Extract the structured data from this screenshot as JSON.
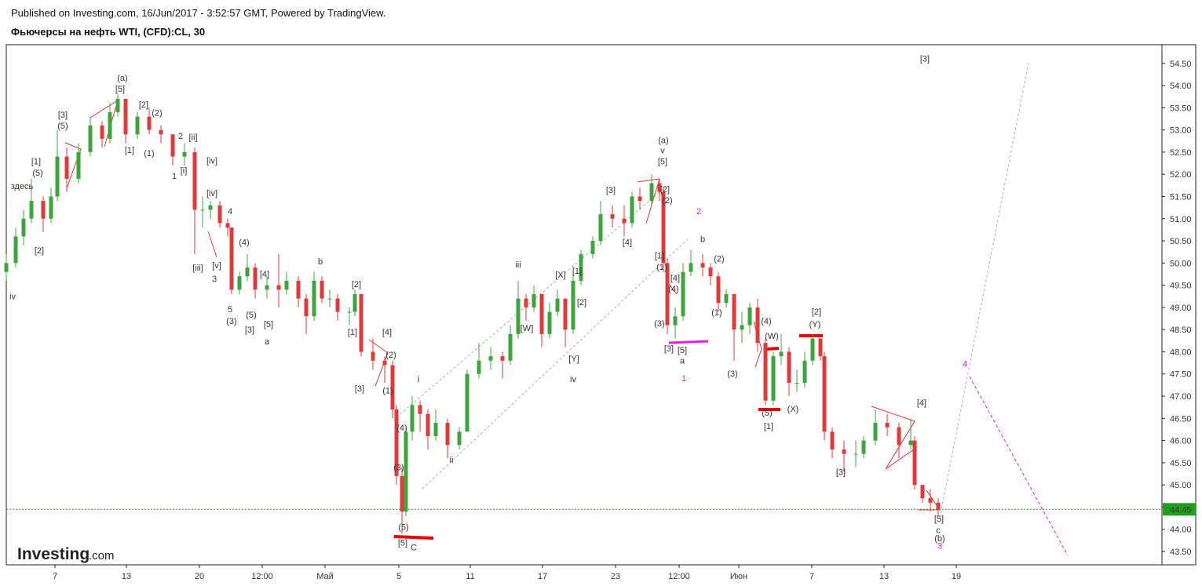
{
  "header": {
    "published": "Published on Investing.com, 16/Jun/2017 - 3:52:57 GMT, Powered by TradingView.",
    "title": "Фьючерсы на нефть WTI, (CFD):CL, 30"
  },
  "logo": {
    "brand": "Investing",
    "suffix": ".com"
  },
  "chart_data": {
    "type": "candlestick",
    "xlim": [
      0,
      1472
    ],
    "xticks": [
      {
        "value": 62,
        "label": "7"
      },
      {
        "value": 153,
        "label": "13"
      },
      {
        "value": 246,
        "label": "20"
      },
      {
        "value": 326,
        "label": "12:00"
      },
      {
        "value": 406,
        "label": "Май"
      },
      {
        "value": 500,
        "label": "5"
      },
      {
        "value": 591,
        "label": "11"
      },
      {
        "value": 683,
        "label": "17"
      },
      {
        "value": 776,
        "label": "23"
      },
      {
        "value": 857,
        "label": "12:00"
      },
      {
        "value": 933,
        "label": "Июн"
      },
      {
        "value": 1026,
        "label": "7"
      },
      {
        "value": 1118,
        "label": "13"
      },
      {
        "value": 1210,
        "label": "19"
      }
    ],
    "ylim": [
      43.2,
      54.92
    ],
    "yticks": [
      {
        "value": 43.5,
        "label": "43.50"
      },
      {
        "value": 44,
        "label": "44.00"
      },
      {
        "value": 44.5,
        "label": "44.50"
      },
      {
        "value": 45,
        "label": "45.00"
      },
      {
        "value": 45.5,
        "label": "45.50"
      },
      {
        "value": 46,
        "label": "46.00"
      },
      {
        "value": 46.5,
        "label": "46.50"
      },
      {
        "value": 47,
        "label": "47.00"
      },
      {
        "value": 47.5,
        "label": "47.50"
      },
      {
        "value": 48,
        "label": "48.00"
      },
      {
        "value": 48.5,
        "label": "48.50"
      },
      {
        "value": 49,
        "label": "49.00"
      },
      {
        "value": 49.5,
        "label": "49.50"
      },
      {
        "value": 50,
        "label": "50.00"
      },
      {
        "value": 50.5,
        "label": "50.50"
      },
      {
        "value": 51,
        "label": "51.00"
      },
      {
        "value": 51.5,
        "label": "51.50"
      },
      {
        "value": 52,
        "label": "52.00"
      },
      {
        "value": 52.5,
        "label": "52.50"
      },
      {
        "value": 53,
        "label": "53.00"
      },
      {
        "value": 53.5,
        "label": "53.50"
      },
      {
        "value": 54,
        "label": "54.00"
      },
      {
        "value": 54.5,
        "label": "54.50"
      }
    ],
    "up_color": "#3da53d",
    "down_color": "#e23a3a",
    "last_price": 44.45,
    "last_price_color": "#1ea01e",
    "x": [
      0,
      12,
      22,
      32,
      47,
      57,
      65,
      77,
      92,
      107,
      122,
      132,
      142,
      152,
      167,
      182,
      197,
      212,
      227,
      240,
      250,
      260,
      272,
      282,
      287,
      297,
      307,
      317,
      332,
      347,
      357,
      372,
      382,
      392,
      402,
      412,
      422,
      437,
      444,
      452,
      467,
      482,
      492,
      497,
      504,
      509,
      517,
      527,
      537,
      547,
      562,
      577,
      587,
      602,
      617,
      632,
      642,
      652,
      662,
      672,
      682,
      692,
      702,
      712,
      722,
      732,
      747,
      757,
      772,
      787,
      797,
      807,
      822,
      832,
      837,
      842,
      852,
      862,
      872,
      887,
      897,
      907,
      917,
      927,
      937,
      947,
      957,
      967,
      977,
      987,
      997,
      1007,
      1017,
      1027,
      1037,
      1042,
      1052,
      1067,
      1082,
      1092,
      1107,
      1122,
      1137,
      1152,
      1157,
      1167,
      1177,
      1187
    ],
    "open": [
      49.8,
      50.0,
      50.6,
      51.0,
      51.4,
      51.0,
      51.5,
      52.4,
      51.9,
      52.5,
      53.1,
      52.8,
      53.4,
      53.7,
      52.9,
      53.3,
      53.0,
      52.9,
      52.4,
      52.5,
      51.2,
      51.2,
      51.3,
      50.9,
      50.8,
      49.4,
      49.7,
      49.9,
      49.4,
      49.5,
      49.4,
      49.6,
      49.2,
      48.8,
      49.6,
      49.2,
      49.2,
      48.9,
      48.9,
      49.3,
      48.0,
      47.8,
      47.7,
      46.7,
      45.2,
      44.4,
      46.2,
      46.8,
      46.6,
      46.1,
      46.4,
      45.9,
      46.2,
      47.5,
      47.8,
      47.9,
      47.8,
      48.4,
      49.2,
      49.0,
      49.3,
      48.4,
      48.9,
      49.2,
      48.5,
      49.6,
      50.2,
      50.5,
      51.1,
      51.0,
      50.9,
      51.5,
      51.4,
      51.8,
      51.6,
      50.0,
      48.6,
      48.8,
      49.8,
      50.0,
      49.9,
      49.7,
      49.1,
      49.3,
      48.5,
      48.6,
      49.0,
      48.2,
      46.9,
      47.9,
      48.0,
      47.3,
      47.3,
      47.8,
      48.3,
      47.9,
      46.2,
      45.8,
      45.7,
      45.7,
      46.0,
      46.4,
      46.3,
      45.9,
      46.0,
      45.0,
      44.7,
      44.6
    ],
    "high": [
      50.2,
      50.8,
      51.2,
      51.9,
      51.5,
      51.7,
      53.0,
      52.6,
      52.7,
      53.3,
      53.2,
      53.6,
      53.8,
      53.7,
      53.4,
      53.5,
      53.1,
      52.9,
      52.7,
      52.6,
      51.5,
      51.4,
      51.4,
      51.0,
      50.8,
      49.8,
      50.2,
      50.0,
      49.7,
      50.2,
      49.8,
      49.7,
      49.3,
      49.8,
      49.7,
      49.4,
      49.3,
      49.0,
      49.4,
      49.3,
      48.3,
      47.9,
      47.8,
      46.8,
      45.4,
      46.3,
      47.0,
      46.9,
      46.7,
      46.7,
      46.5,
      46.3,
      47.6,
      48.2,
      48.1,
      48.0,
      48.6,
      49.6,
      49.3,
      49.5,
      49.3,
      49.1,
      49.4,
      49.2,
      49.8,
      50.3,
      50.6,
      51.4,
      51.3,
      51.3,
      51.6,
      51.7,
      52.0,
      51.9,
      51.7,
      50.1,
      49.0,
      50.0,
      50.3,
      50.2,
      50.0,
      49.8,
      49.4,
      49.3,
      48.9,
      49.1,
      49.2,
      48.3,
      48.0,
      48.4,
      48.1,
      47.6,
      48.0,
      48.4,
      48.3,
      48.0,
      46.3,
      46.0,
      46.0,
      46.1,
      46.7,
      46.6,
      46.4,
      46.5,
      46.1,
      45.0,
      44.9,
      44.7
    ],
    "low": [
      49.6,
      49.9,
      50.4,
      50.9,
      50.7,
      50.9,
      51.4,
      51.6,
      51.8,
      52.4,
      52.6,
      52.7,
      53.3,
      52.7,
      52.8,
      52.9,
      52.7,
      52.2,
      52.2,
      50.2,
      50.8,
      51.0,
      50.8,
      50.6,
      49.3,
      49.3,
      49.6,
      49.2,
      49.2,
      49.0,
      49.3,
      49.0,
      48.4,
      48.7,
      49.1,
      49.0,
      48.7,
      48.6,
      48.8,
      47.9,
      47.6,
      47.3,
      46.5,
      45.0,
      43.9,
      44.3,
      46.0,
      46.2,
      45.8,
      46.0,
      45.6,
      45.8,
      46.2,
      47.4,
      47.6,
      47.4,
      47.7,
      48.3,
      48.7,
      48.9,
      48.1,
      48.3,
      48.8,
      48.1,
      48.4,
      49.5,
      50.1,
      50.4,
      50.8,
      50.6,
      50.8,
      51.2,
      51.3,
      51.4,
      49.8,
      48.4,
      48.3,
      48.7,
      49.7,
      49.7,
      49.5,
      48.9,
      49.0,
      47.8,
      48.2,
      48.4,
      48.0,
      46.8,
      46.8,
      47.7,
      47.0,
      47.1,
      47.2,
      47.7,
      47.8,
      46.0,
      45.6,
      45.3,
      45.4,
      45.6,
      45.9,
      46.1,
      45.6,
      45.8,
      44.9,
      44.6,
      44.4,
      44.3
    ],
    "close": [
      50.0,
      50.6,
      51.0,
      51.4,
      51.0,
      51.5,
      52.4,
      51.9,
      52.5,
      53.1,
      52.8,
      53.4,
      53.7,
      52.9,
      53.3,
      53.0,
      52.9,
      52.4,
      52.5,
      51.2,
      51.2,
      51.3,
      50.9,
      50.8,
      49.4,
      49.7,
      49.9,
      49.4,
      49.5,
      49.4,
      49.6,
      49.2,
      48.8,
      49.6,
      49.2,
      49.2,
      48.9,
      48.9,
      49.3,
      48.0,
      47.8,
      47.7,
      46.7,
      45.2,
      44.4,
      46.2,
      46.8,
      46.6,
      46.1,
      46.4,
      45.9,
      46.2,
      47.5,
      47.8,
      47.9,
      47.8,
      48.4,
      49.2,
      49.0,
      49.3,
      48.4,
      48.9,
      49.2,
      48.5,
      49.6,
      50.2,
      50.5,
      51.1,
      51.0,
      50.9,
      51.5,
      51.4,
      51.8,
      51.6,
      50.0,
      48.6,
      48.8,
      49.8,
      50.0,
      49.9,
      49.7,
      49.1,
      49.3,
      48.5,
      48.6,
      49.0,
      48.2,
      46.9,
      47.9,
      48.0,
      47.3,
      47.3,
      47.8,
      48.3,
      47.9,
      46.2,
      45.8,
      45.7,
      45.7,
      46.0,
      46.4,
      46.3,
      45.9,
      46.0,
      45.0,
      44.7,
      44.6,
      44.45
    ],
    "annotation_color": "#333333",
    "annotations": [
      {
        "text": "(a)",
        "x": 148,
        "y": 54.11
      },
      {
        "text": "[5]",
        "x": 145,
        "y": 53.86
      },
      {
        "text": "[3]",
        "x": 72,
        "y": 53.28
      },
      {
        "text": "(5)",
        "x": 72,
        "y": 53.03
      },
      {
        "text": "[1]",
        "x": 38,
        "y": 52.22
      },
      {
        "text": "(5)",
        "x": 40,
        "y": 51.97
      },
      {
        "text": "здесь",
        "x": 20,
        "y": 51.67
      },
      {
        "text": "[2]",
        "x": 42,
        "y": 50.22
      },
      {
        "text": "iv",
        "x": 8,
        "y": 49.18
      },
      {
        "text": "[1]",
        "x": 157,
        "y": 52.48
      },
      {
        "text": "[2]",
        "x": 175,
        "y": 53.51
      },
      {
        "text": "(2)",
        "x": 192,
        "y": 53.32
      },
      {
        "text": "(1)",
        "x": 182,
        "y": 52.41
      },
      {
        "text": "2",
        "x": 222,
        "y": 52.8
      },
      {
        "text": "[ii]",
        "x": 238,
        "y": 52.77
      },
      {
        "text": "1",
        "x": 214,
        "y": 51.9
      },
      {
        "text": "[i]",
        "x": 226,
        "y": 52.02
      },
      {
        "text": "[iv]",
        "x": 262,
        "y": 52.24
      },
      {
        "text": "[iv]",
        "x": 262,
        "y": 51.51
      },
      {
        "text": "4",
        "x": 285,
        "y": 51.1
      },
      {
        "text": "[iii]",
        "x": 244,
        "y": 49.83
      },
      {
        "text": "[v]",
        "x": 268,
        "y": 49.88
      },
      {
        "text": "3",
        "x": 265,
        "y": 49.58
      },
      {
        "text": "(4)",
        "x": 303,
        "y": 50.4
      },
      {
        "text": "5",
        "x": 285,
        "y": 48.89
      },
      {
        "text": "(3)",
        "x": 287,
        "y": 48.63
      },
      {
        "text": "(5)",
        "x": 312,
        "y": 48.77
      },
      {
        "text": "[3]",
        "x": 310,
        "y": 48.43
      },
      {
        "text": "[5]",
        "x": 334,
        "y": 48.56
      },
      {
        "text": "a",
        "x": 332,
        "y": 48.17
      },
      {
        "text": "[4]",
        "x": 329,
        "y": 49.69
      },
      {
        "text": "b",
        "x": 400,
        "y": 49.97
      },
      {
        "text": "[2]",
        "x": 446,
        "y": 49.46
      },
      {
        "text": "[1]",
        "x": 441,
        "y": 48.38
      },
      {
        "text": "[3]",
        "x": 450,
        "y": 47.11
      },
      {
        "text": "[4]",
        "x": 485,
        "y": 48.38
      },
      {
        "text": "(2)",
        "x": 490,
        "y": 47.87
      },
      {
        "text": "(1)",
        "x": 486,
        "y": 47.06
      },
      {
        "text": "i",
        "x": 525,
        "y": 47.32
      },
      {
        "text": "(4)",
        "x": 504,
        "y": 46.22
      },
      {
        "text": "(3)",
        "x": 500,
        "y": 45.33
      },
      {
        "text": "(5)",
        "x": 506,
        "y": 43.99
      },
      {
        "text": "[5]",
        "x": 505,
        "y": 43.63
      },
      {
        "text": "C",
        "x": 519,
        "y": 43.53
      },
      {
        "text": "ii",
        "x": 567,
        "y": 45.5
      },
      {
        "text": "iii",
        "x": 652,
        "y": 49.9
      },
      {
        "text": "[W]",
        "x": 663,
        "y": 48.47
      },
      {
        "text": "[X]",
        "x": 706,
        "y": 49.67
      },
      {
        "text": "[1]",
        "x": 727,
        "y": 49.76
      },
      {
        "text": "[2]",
        "x": 733,
        "y": 49.05
      },
      {
        "text": "[Y]",
        "x": 723,
        "y": 47.78
      },
      {
        "text": "iv",
        "x": 722,
        "y": 47.32
      },
      {
        "text": "[3]",
        "x": 770,
        "y": 51.58
      },
      {
        "text": "[4]",
        "x": 791,
        "y": 50.4
      },
      {
        "text": "(a)",
        "x": 837,
        "y": 52.7
      },
      {
        "text": "v",
        "x": 836,
        "y": 52.47
      },
      {
        "text": "[5]",
        "x": 836,
        "y": 52.22
      },
      {
        "text": "[2]",
        "x": 839,
        "y": 51.6
      },
      {
        "text": "(2)",
        "x": 842,
        "y": 51.35
      },
      {
        "text": "[1]",
        "x": 832,
        "y": 50.1
      },
      {
        "text": "(1)",
        "x": 835,
        "y": 49.85
      },
      {
        "text": "[4]",
        "x": 852,
        "y": 49.6
      },
      {
        "text": "(4)",
        "x": 850,
        "y": 49.35
      },
      {
        "text": "(3)",
        "x": 832,
        "y": 48.57
      },
      {
        "text": "[3]",
        "x": 844,
        "y": 48.01
      },
      {
        "text": "[5]",
        "x": 861,
        "y": 47.97
      },
      {
        "text": "a",
        "x": 861,
        "y": 47.73
      },
      {
        "text": "b",
        "x": 887,
        "y": 50.47
      },
      {
        "text": "(2)",
        "x": 908,
        "y": 50.03
      },
      {
        "text": "(1)",
        "x": 905,
        "y": 48.82
      },
      {
        "text": "(3)",
        "x": 925,
        "y": 47.44
      },
      {
        "text": "(4)",
        "x": 968,
        "y": 48.63
      },
      {
        "text": "(W)",
        "x": 975,
        "y": 48.29
      },
      {
        "text": "(5)",
        "x": 969,
        "y": 46.56
      },
      {
        "text": "[1]",
        "x": 971,
        "y": 46.26
      },
      {
        "text": "(X)",
        "x": 1002,
        "y": 46.65
      },
      {
        "text": "[2]",
        "x": 1032,
        "y": 48.84
      },
      {
        "text": "(Y)",
        "x": 1030,
        "y": 48.56
      },
      {
        "text": "[3]",
        "x": 1063,
        "y": 45.22
      },
      {
        "text": "[4]",
        "x": 1166,
        "y": 46.79
      },
      {
        "text": "[5]",
        "x": 1188,
        "y": 44.17
      },
      {
        "text": "c",
        "x": 1187,
        "y": 43.92
      },
      {
        "text": "(b)",
        "x": 1189,
        "y": 43.73
      },
      {
        "text": "[3]",
        "x": 1170,
        "y": 54.54
      },
      {
        "text": "2",
        "x": 882,
        "y": 51.1,
        "color": "#e020e0"
      },
      {
        "text": "1",
        "x": 863,
        "y": 47.34,
        "color": "#e020e0"
      },
      {
        "text": "4",
        "x": 1221,
        "y": 47.66,
        "color": "#e020e0"
      },
      {
        "text": "3",
        "x": 1189,
        "y": 43.56,
        "color": "#e020e0"
      }
    ]
  }
}
